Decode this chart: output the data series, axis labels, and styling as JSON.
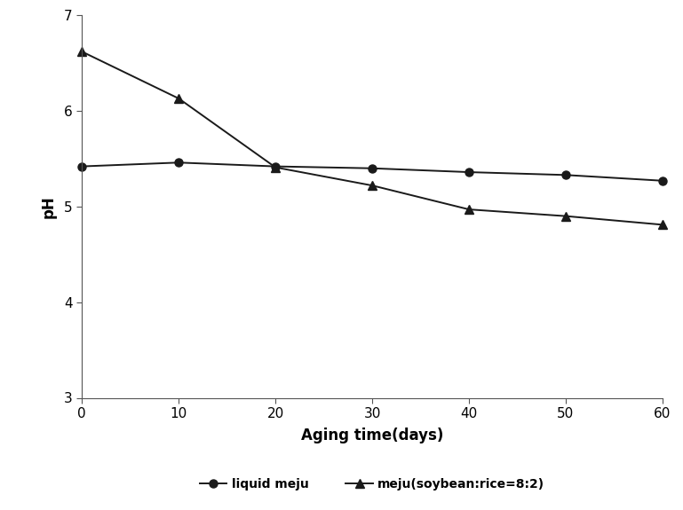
{
  "x": [
    0,
    10,
    20,
    30,
    40,
    50,
    60
  ],
  "liquid_meju": [
    5.42,
    5.46,
    5.42,
    5.4,
    5.36,
    5.33,
    5.27
  ],
  "solid_meju": [
    6.62,
    6.13,
    5.41,
    5.22,
    4.97,
    4.9,
    4.81
  ],
  "xlabel": "Aging time(days)",
  "ylabel": "pH",
  "ylim": [
    3.0,
    7.0
  ],
  "xlim": [
    0,
    60
  ],
  "yticks": [
    3,
    4,
    5,
    6,
    7
  ],
  "xticks": [
    0,
    10,
    20,
    30,
    40,
    50,
    60
  ],
  "legend_liquid": "liquid meju",
  "legend_solid": "meju(soybean:rice=8:2)",
  "line_color": "#1a1a1a",
  "background_color": "#ffffff",
  "xlabel_fontsize": 12,
  "ylabel_fontsize": 12,
  "tick_fontsize": 11,
  "legend_fontsize": 10
}
